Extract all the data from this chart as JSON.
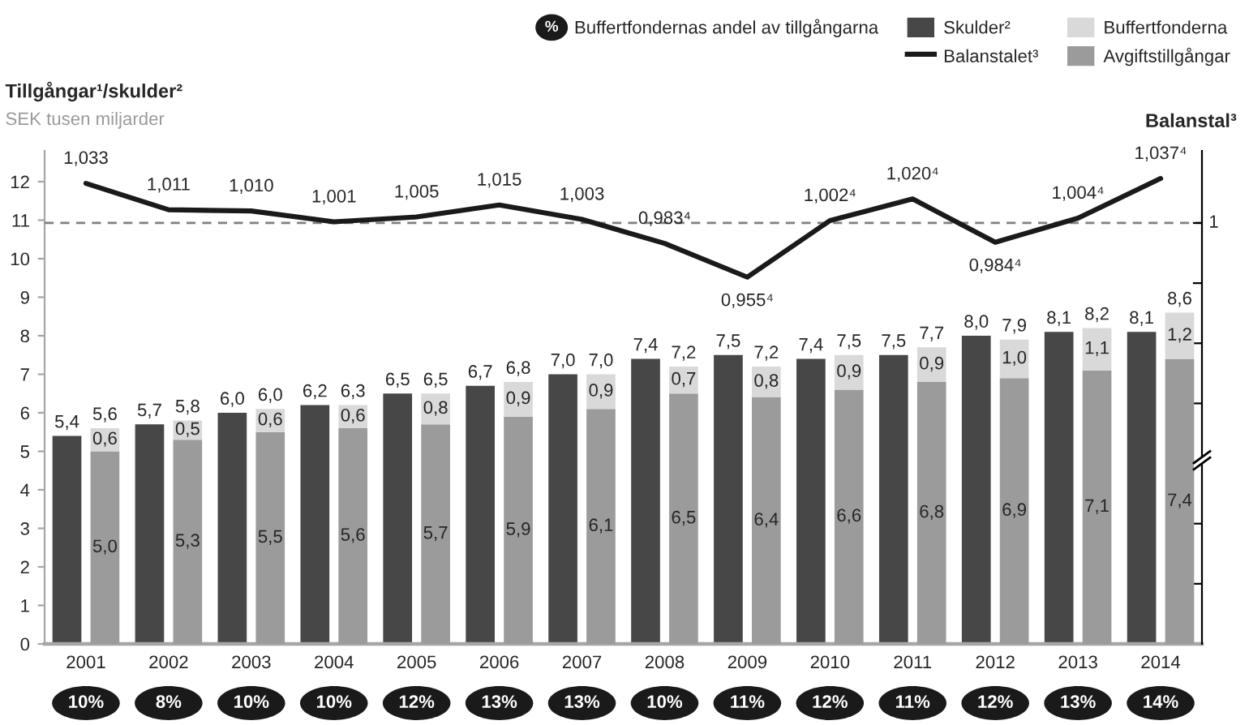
{
  "chart_data": [
    {
      "type": "bar",
      "ylabel": "Tillgångar¹/skulder²",
      "subtitle": "SEK tusen miljarder",
      "y2label": "Balanstal³",
      "categories": [
        "2001",
        "2002",
        "2003",
        "2004",
        "2005",
        "2006",
        "2007",
        "2008",
        "2009",
        "2010",
        "2011",
        "2012",
        "2013",
        "2014"
      ],
      "series": [
        {
          "name": "Skulder²",
          "color": "#474747",
          "values": [
            5.4,
            5.7,
            6.0,
            6.2,
            6.5,
            6.7,
            7.0,
            7.4,
            7.5,
            7.4,
            7.5,
            8.0,
            8.1,
            8.1
          ],
          "value_labels": [
            "5,4",
            "5,7",
            "6,0",
            "6,2",
            "6,5",
            "6,7",
            "7,0",
            "7,4",
            "7,5",
            "7,4",
            "7,5",
            "8,0",
            "8,1",
            "8,1"
          ]
        },
        {
          "name": "Balanstalet³",
          "type": "line",
          "axis": "y2",
          "color": "#1a1a1a",
          "line_style": "solid",
          "values": [
            1.033,
            1.011,
            1.01,
            1.001,
            1.005,
            1.015,
            1.003,
            0.983,
            0.955,
            1.002,
            1.02,
            0.984,
            1.004,
            1.037
          ],
          "value_labels": [
            "1,033",
            "1,011",
            "1,010",
            "1,001",
            "1,005",
            "1,015",
            "1,003",
            "0,983⁴",
            "0,955⁴",
            "1,002⁴",
            "1,020⁴",
            "0,984⁴",
            "1,004⁴",
            "1,037⁴"
          ]
        }
      ],
      "ylim": [
        0,
        12.8
      ],
      "yticks": [
        0,
        1,
        2,
        3,
        4,
        5,
        6,
        7,
        8,
        9,
        10,
        11,
        12
      ],
      "y2lim": [
        0.65,
        1.06
      ],
      "y2ticks": [
        {
          "value": 0.7,
          "label": null
        },
        {
          "value": 0.75,
          "label": null
        },
        {
          "value": 0.85,
          "label": null
        },
        {
          "value": 0.9,
          "label": null
        },
        {
          "value": 0.95,
          "label": null
        },
        {
          "value": 1,
          "label": null
        }
      ],
      "ref_lines": [
        {
          "axis": "y2",
          "value": 1,
          "label": "1",
          "color": "#808080",
          "line_style": "dashed"
        }
      ],
      "legend": "top right"
    },
    {
      "type": "bar",
      "stacked": true,
      "tick_labels": false,
      "categories": [
        "2001",
        "2002",
        "2003",
        "2004",
        "2005",
        "2006",
        "2007",
        "2008",
        "2009",
        "2010",
        "2011",
        "2012",
        "2013",
        "2014"
      ],
      "series": [
        {
          "name": "Avgiftstillgångar",
          "color": "#9b9b9b",
          "values": [
            5.0,
            5.3,
            5.5,
            5.6,
            5.7,
            5.9,
            6.1,
            6.5,
            6.4,
            6.6,
            6.8,
            6.9,
            7.1,
            7.4
          ],
          "value_labels": [
            "5,0",
            "5,3",
            "5,5",
            "5,6",
            "5,7",
            "5,9",
            "6,1",
            "6,5",
            "6,4",
            "6,6",
            "6,8",
            "6,9",
            "7,1",
            "7,4"
          ]
        },
        {
          "name": "Buffertfonderna",
          "color": "#d9d9d9",
          "values": [
            0.6,
            0.5,
            0.6,
            0.6,
            0.8,
            0.9,
            0.9,
            0.7,
            0.8,
            0.9,
            0.9,
            1.0,
            1.1,
            1.2
          ],
          "value_labels": [
            "0,6",
            "0,5",
            "0,6",
            "0,6",
            "0,8",
            "0,9",
            "0,9",
            "0,7",
            "0,8",
            "0,9",
            "0,9",
            "1,0",
            "1,1",
            "1,2"
          ]
        }
      ],
      "totals": [
        "5,6",
        "5,8",
        "6,0",
        "6,3",
        "6,5",
        "6,8",
        "7,0",
        "7,2",
        "7,2",
        "7,5",
        "7,7",
        "7,9",
        "8,2",
        "8,6"
      ],
      "ylim": [
        0,
        12.8
      ],
      "legend": "top right"
    },
    {
      "type": "other",
      "annotations": [
        "%"
      ],
      "legend": "top right",
      "categories": [
        null,
        null,
        null,
        null,
        null,
        null,
        null,
        null,
        null,
        null,
        null,
        null,
        null,
        null
      ],
      "series": [
        {
          "name": "Buffertfondernas andel av tillgångarna",
          "color": "#1a1a1a",
          "values": [
            10,
            8,
            10,
            10,
            12,
            13,
            13,
            10,
            11,
            12,
            11,
            12,
            13,
            14
          ],
          "value_labels": [
            "10%",
            "8%",
            "10%",
            "10%",
            "12%",
            "13%",
            "13%",
            "10%",
            "11%",
            "12%",
            "11%",
            "12%",
            "13%",
            "14%"
          ]
        }
      ]
    }
  ]
}
